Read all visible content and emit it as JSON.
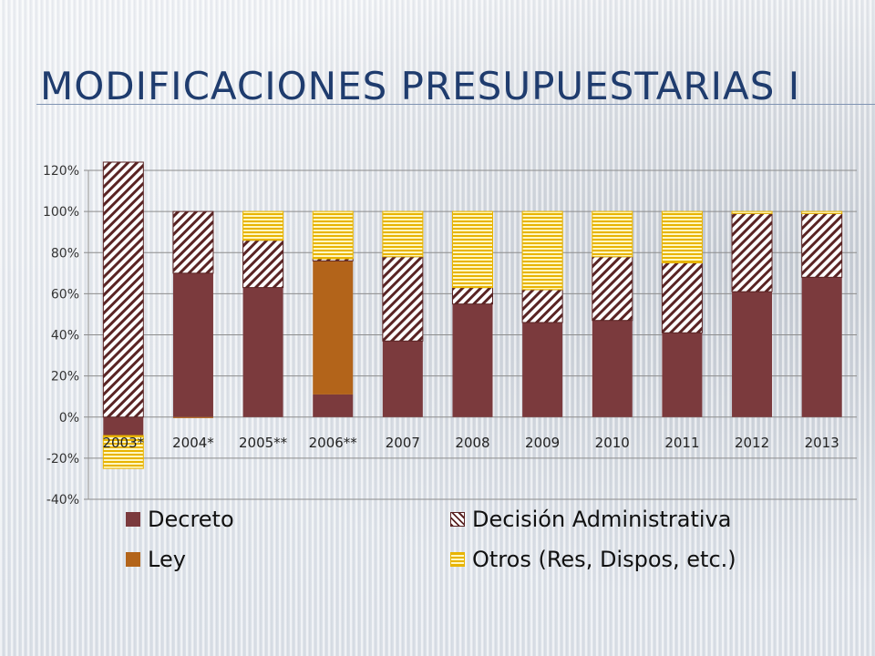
{
  "slide": {
    "title": "MODIFICACIONES PRESUPUESTARIAS I"
  },
  "chart_data": {
    "type": "bar",
    "stacked": true,
    "categories": [
      "2003*",
      "2004*",
      "2005**",
      "2006**",
      "2007",
      "2008",
      "2009",
      "2010",
      "2011",
      "2012",
      "2013"
    ],
    "series": [
      {
        "name": "Decreto",
        "color": "#7b3a3d",
        "pattern": "solid",
        "values": [
          -0.09,
          0.7,
          0.63,
          0.11,
          0.37,
          0.55,
          0.46,
          0.47,
          0.41,
          0.61,
          0.68
        ]
      },
      {
        "name": "Ley",
        "color": "#b3641a",
        "pattern": "solid",
        "values": [
          0.0,
          -0.005,
          0.0,
          0.65,
          0.0,
          0.0,
          0.0,
          0.0,
          0.0,
          0.0,
          0.0
        ]
      },
      {
        "name": "Decisión Administrativa",
        "color": "#5a2424",
        "pattern": "diagonal-stripes",
        "values": [
          1.24,
          0.3,
          0.23,
          0.01,
          0.41,
          0.08,
          0.16,
          0.31,
          0.34,
          0.38,
          0.31
        ]
      },
      {
        "name": "Otros (Res, Dispos, etc.)",
        "color": "#e8b400",
        "pattern": "horizontal-stripes",
        "values": [
          -0.16,
          0.0,
          0.14,
          0.23,
          0.22,
          0.37,
          0.38,
          0.22,
          0.25,
          0.01,
          0.01
        ]
      }
    ],
    "y_ticks": [
      "120%",
      "100%",
      "80%",
      "60%",
      "40%",
      "20%",
      "0%",
      "-20%",
      "-40%"
    ],
    "ylim": [
      -0.4,
      1.2
    ],
    "grid": true,
    "legend_position": "bottom",
    "legend_order": [
      "Decreto",
      "Decisión Administrativa",
      "Ley",
      "Otros (Res, Dispos, etc.)"
    ],
    "xlabel": "",
    "ylabel": ""
  }
}
